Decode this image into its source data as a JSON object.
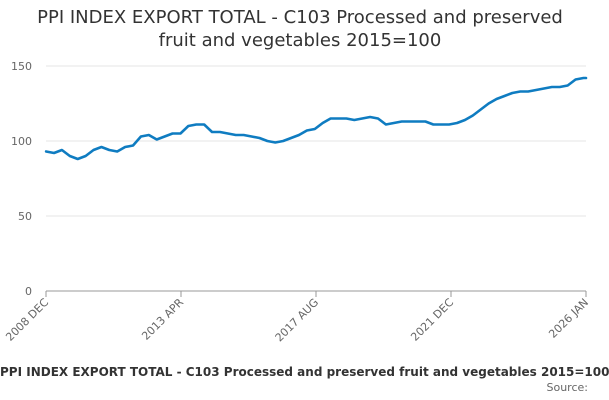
{
  "chart_data": {
    "type": "line",
    "title": "PPI INDEX EXPORT TOTAL - C103 Processed and preserved fruit and vegetables 2015=100",
    "title_lines": [
      "PPI INDEX EXPORT TOTAL - C103 Processed and preserved",
      "fruit and vegetables 2015=100"
    ],
    "xlabel": "",
    "ylabel": "",
    "ylim": [
      0,
      150
    ],
    "yticks": [
      0,
      50,
      100,
      150
    ],
    "grid": true,
    "xtick_labels": [
      "2008 DEC",
      "2013 APR",
      "2017 AUG",
      "2021 DEC",
      "2026 JAN"
    ],
    "x_range": [
      "2008-12",
      "2026-01"
    ],
    "color": "#0f7cc1",
    "legend": "PPI INDEX EXPORT TOTAL - C103 Processed and preserved fruit and vegetables 2015=100",
    "series": [
      {
        "name": "PPI INDEX EXPORT TOTAL - C103 Processed and preserved fruit and vegetables 2015=100",
        "x": [
          2008.92,
          2009.17,
          2009.42,
          2009.67,
          2009.92,
          2010.17,
          2010.42,
          2010.67,
          2010.92,
          2011.17,
          2011.42,
          2011.67,
          2011.92,
          2012.17,
          2012.42,
          2012.67,
          2012.92,
          2013.17,
          2013.42,
          2013.67,
          2013.92,
          2014.17,
          2014.42,
          2014.67,
          2014.92,
          2015.17,
          2015.42,
          2015.67,
          2015.92,
          2016.17,
          2016.42,
          2016.67,
          2016.92,
          2017.17,
          2017.42,
          2017.67,
          2017.92,
          2018.17,
          2018.42,
          2018.67,
          2018.92,
          2019.17,
          2019.42,
          2019.67,
          2019.92,
          2020.17,
          2020.42,
          2020.67,
          2020.92,
          2021.17,
          2021.42,
          2021.67,
          2021.92,
          2022.17,
          2022.42,
          2022.67,
          2022.92,
          2023.17,
          2023.42,
          2023.67,
          2023.92,
          2024.17,
          2024.42,
          2024.67,
          2024.92,
          2025.17,
          2025.42,
          2025.67,
          2025.92,
          2026.0
        ],
        "values": [
          93,
          92,
          94,
          90,
          88,
          90,
          94,
          96,
          94,
          93,
          96,
          97,
          103,
          104,
          101,
          103,
          105,
          105,
          110,
          111,
          111,
          106,
          106,
          105,
          104,
          104,
          103,
          102,
          100,
          99,
          100,
          102,
          104,
          107,
          108,
          112,
          115,
          115,
          115,
          114,
          115,
          116,
          115,
          111,
          112,
          113,
          113,
          113,
          113,
          111,
          111,
          111,
          112,
          114,
          117,
          121,
          125,
          128,
          130,
          132,
          133,
          133,
          134,
          135,
          136,
          136,
          137,
          141,
          142,
          142
        ]
      }
    ]
  },
  "source_label": "Source:"
}
